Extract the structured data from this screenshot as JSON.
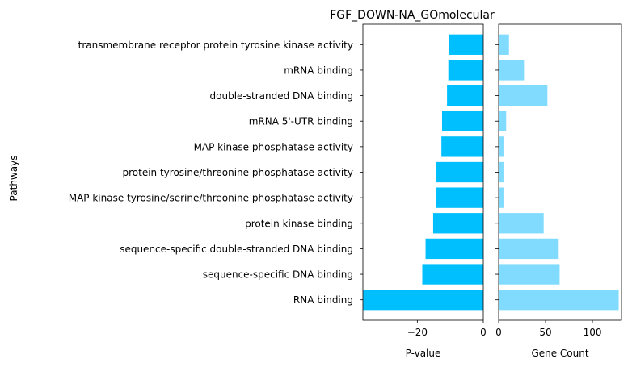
{
  "chart_data": {
    "type": "bar",
    "orientation": "horizontal",
    "title": "FGF_DOWN-NA_GOmolecular",
    "ylabel": "Pathways",
    "categories": [
      "transmembrane receptor protein tyrosine kinase activity",
      "mRNA binding",
      "double-stranded DNA binding",
      "mRNA 5'-UTR binding",
      "MAP kinase phosphatase activity",
      "protein tyrosine/threonine phosphatase activity",
      "MAP kinase tyrosine/serine/threonine phosphatase activity",
      "protein kinase binding",
      "sequence-specific double-stranded DNA binding",
      "sequence-specific DNA binding",
      "RNA binding"
    ],
    "panels": [
      {
        "xlabel": "P-value",
        "color": "#00bfff",
        "xlim": [
          -36.5,
          0
        ],
        "xticks": [
          -20,
          0
        ],
        "xtick_labels": [
          "−20",
          "0"
        ],
        "values": [
          -10.5,
          -10.6,
          -11.0,
          -12.5,
          -12.7,
          -14.4,
          -14.4,
          -15.2,
          -17.5,
          -18.5,
          -36.4
        ]
      },
      {
        "xlabel": "Gene Count",
        "color": "#80dbff",
        "xlim": [
          0,
          131
        ],
        "xticks": [
          0,
          50,
          100
        ],
        "xtick_labels": [
          "0",
          "50",
          "100"
        ],
        "values": [
          11,
          27,
          52,
          8,
          6,
          6,
          6,
          48,
          64,
          65,
          128
        ]
      }
    ]
  }
}
